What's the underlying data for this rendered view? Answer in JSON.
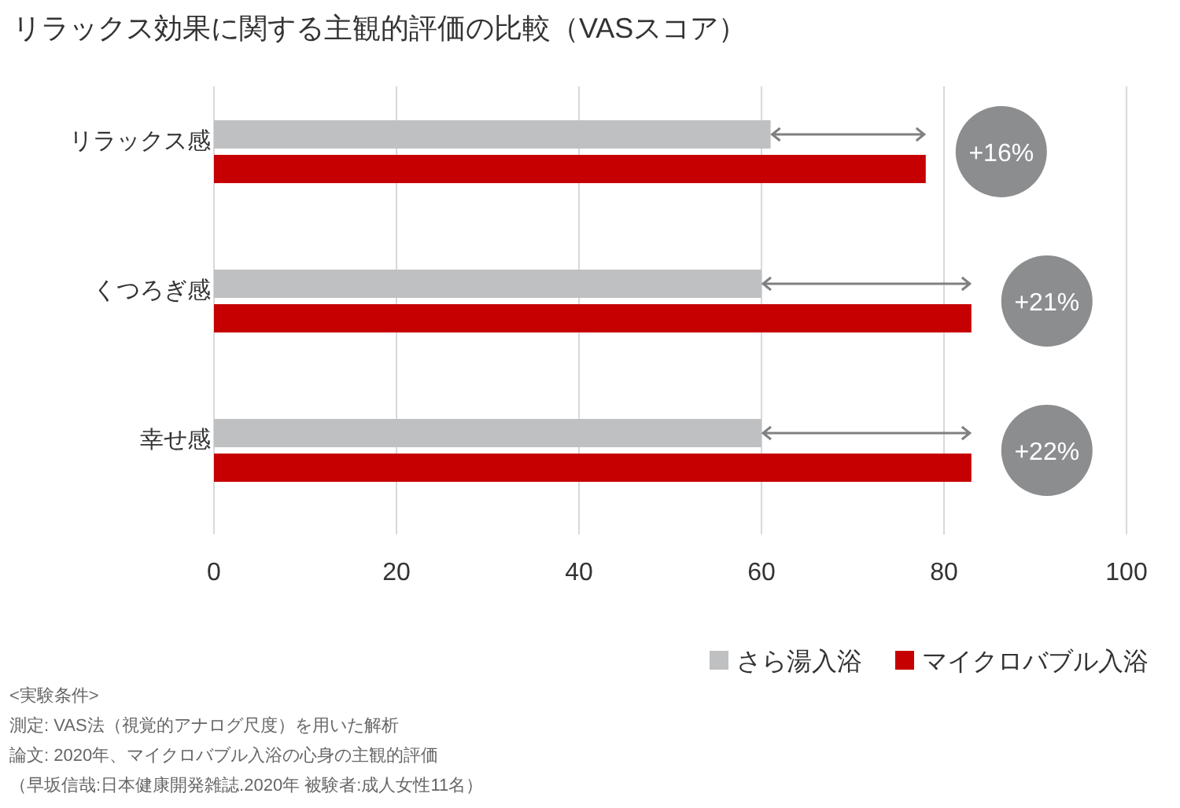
{
  "chart_data": {
    "type": "bar",
    "orientation": "horizontal",
    "title": "リラックス効果に関する主観的評価の比較（VASスコア）",
    "categories": [
      "リラックス感",
      "くつろぎ感",
      "幸せ感"
    ],
    "series": [
      {
        "name": "さら湯入浴",
        "color": "#bfc0c1",
        "values": [
          61,
          60,
          60
        ]
      },
      {
        "name": "マイクロバブル入浴",
        "color": "#c60000",
        "values": [
          78,
          83,
          83
        ]
      }
    ],
    "xlim": [
      0,
      100
    ],
    "xticks": [
      0,
      20,
      40,
      60,
      80,
      100
    ],
    "grid": "x",
    "legend": "bottom right",
    "annotations": [
      "+16%",
      "+21%",
      "+22%",
      "<実験条件>",
      "測定: VAS法（視覚的アナログ尺度）を用いた解析",
      "論文: 2020年、マイクロバブル入浴の心身の主観的評価",
      "（早坂信哉:日本健康開発雑誌.2020年 被験者:成人女性11名）"
    ]
  }
}
